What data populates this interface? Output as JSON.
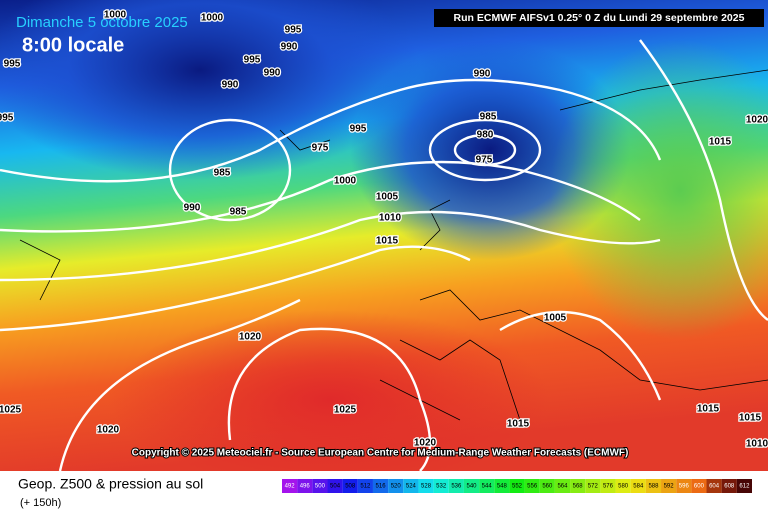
{
  "header": {
    "date": "Dimanche 5 octobre 2025",
    "time": "8:00 locale",
    "run": "Run ECMWF AIFSv1 0.25° 0 Z du Lundi 29 septembre 2025"
  },
  "copyright": "Copyright © 2025 Meteociel.fr - Source European Centre for Medium-Range Weather Forecasts (ECMWF)",
  "footer": {
    "title": "Geop. Z500 & pression au sol",
    "subtitle": "(+ 150h)"
  },
  "scale": {
    "labels": [
      492,
      496,
      500,
      504,
      508,
      512,
      516,
      520,
      524,
      528,
      532,
      536,
      540,
      544,
      548,
      552,
      556,
      560,
      564,
      568,
      572,
      576,
      580,
      584,
      588,
      592,
      596,
      600,
      604,
      608,
      612
    ]
  },
  "isobar_labels": [
    1000,
    1000,
    995,
    995,
    990,
    995,
    990,
    990,
    995,
    985,
    990,
    985,
    995,
    975,
    1000,
    1005,
    1010,
    1015,
    990,
    985,
    980,
    975,
    1020,
    1015,
    1020,
    1005,
    1025,
    1025,
    1020,
    1015,
    1020,
    1015,
    1015,
    1010
  ]
}
